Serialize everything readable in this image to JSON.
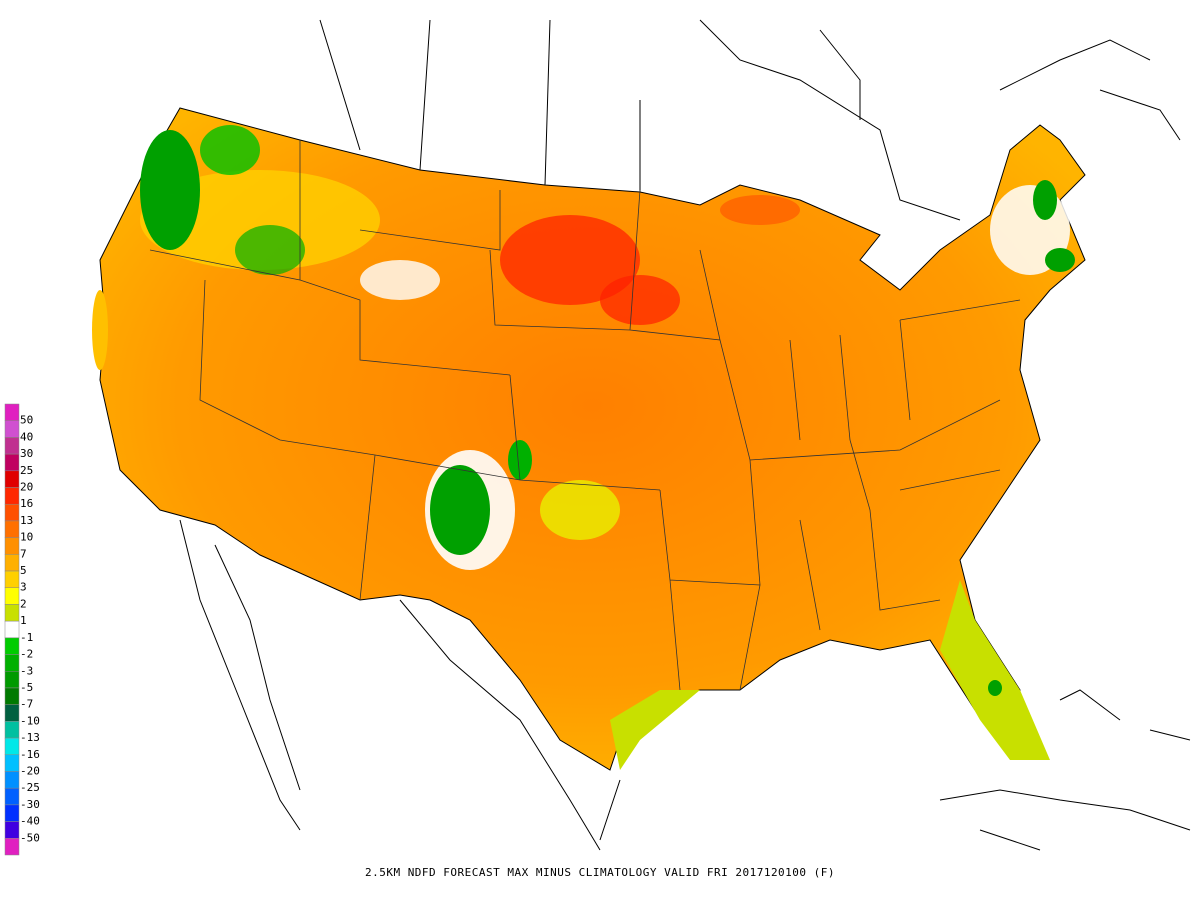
{
  "legend": {
    "labels": [
      "50",
      "40",
      "30",
      "25",
      "20",
      "16",
      "13",
      "10",
      "7",
      "5",
      "3",
      "2",
      "1",
      "-1",
      "-2",
      "-3",
      "-5",
      "-7",
      "-10",
      "-13",
      "-16",
      "-20",
      "-25",
      "-30",
      "-40",
      "-50"
    ],
    "band_colors": [
      "#e020c0",
      "#d050d0",
      "#c03090",
      "#c00060",
      "#e00000",
      "#ff2800",
      "#ff5000",
      "#ff7000",
      "#ff9000",
      "#ffb000",
      "#ffd000",
      "#ffff00",
      "#c8e000",
      "#ffffff",
      "#00cc00",
      "#00b000",
      "#009a00",
      "#007a00",
      "#006040",
      "#00c0a0",
      "#00e8e8",
      "#00c0ff",
      "#0090ff",
      "#0060ff",
      "#0030ff",
      "#4000e0",
      "#e020c0"
    ]
  },
  "caption": "2.5KM NDFD FORECAST MAX MINUS CLIMATOLOGY VALID FRI 2017120100 (F)"
}
